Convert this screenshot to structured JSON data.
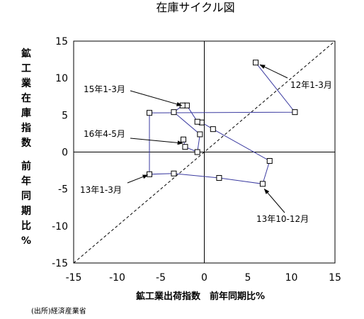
{
  "chart_data": {
    "type": "scatter",
    "title": "在庫サイクル図",
    "xlabel": "鉱工業出荷指数　前年同期比%",
    "ylabel_chars": [
      "鉱",
      "工",
      "業",
      "在",
      "庫",
      "指",
      "数",
      "",
      "前",
      "年",
      "同",
      "期",
      "比",
      "%"
    ],
    "source": "(出所)経済産業省",
    "xlim": [
      -15,
      15
    ],
    "ylim": [
      -15,
      15
    ],
    "xticks": [
      -15,
      -10,
      -5,
      0,
      5,
      10,
      15
    ],
    "yticks": [
      -15,
      -10,
      -5,
      0,
      5,
      10,
      15
    ],
    "grid": false,
    "reference_line": "y = x (dashed)",
    "series": [
      {
        "color": "#3a3aa0",
        "marker": "square-open",
        "points": [
          {
            "x": 5.9,
            "y": 12.1
          },
          {
            "x": 10.4,
            "y": 5.4
          },
          {
            "x": -6.3,
            "y": 5.3
          },
          {
            "x": -6.3,
            "y": -3.0
          },
          {
            "x": -3.5,
            "y": -2.9
          },
          {
            "x": 1.7,
            "y": -3.5
          },
          {
            "x": 6.7,
            "y": -4.3
          },
          {
            "x": 7.5,
            "y": -1.2
          },
          {
            "x": 1.0,
            "y": 3.1
          },
          {
            "x": -0.3,
            "y": 4.0
          },
          {
            "x": -0.8,
            "y": 4.1
          },
          {
            "x": -2.0,
            "y": 6.3
          },
          {
            "x": -2.5,
            "y": 6.3
          },
          {
            "x": -3.5,
            "y": 5.4
          },
          {
            "x": -0.5,
            "y": 2.4
          },
          {
            "x": -0.8,
            "y": 0.0
          },
          {
            "x": -2.2,
            "y": 0.7
          },
          {
            "x": -2.4,
            "y": 1.7
          }
        ]
      }
    ],
    "annotations": [
      {
        "text": "12年1-3月",
        "x": 6.4,
        "y": 11.8,
        "tx": 10.1,
        "ty": 10.0
      },
      {
        "text": "15年1-3月",
        "x": -2.6,
        "y": 6.3,
        "tx": -7.5,
        "ty": 8.6
      },
      {
        "text": "16年4-5月",
        "x": -2.5,
        "y": 1.2,
        "tx": -7.5,
        "ty": 2.3
      },
      {
        "text": "13年1-3月",
        "x": -6.5,
        "y": -3.1,
        "tx": -10.5,
        "ty": -4.7
      },
      {
        "text": "13年10-12月",
        "x": 6.9,
        "y": -5.0,
        "tx": 3.5,
        "ty": -9.1
      }
    ]
  }
}
